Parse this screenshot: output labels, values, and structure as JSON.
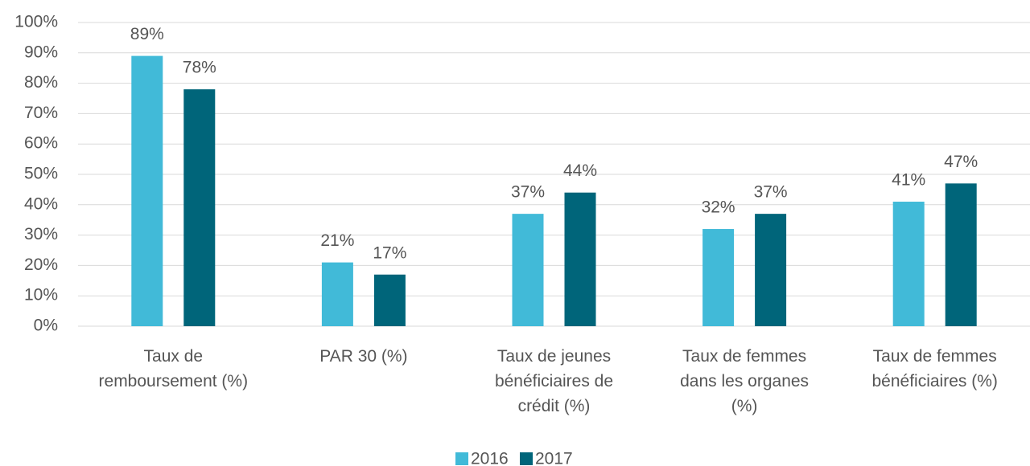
{
  "chart_data": {
    "type": "bar",
    "categories": [
      "Taux de\nremboursement (%)",
      "PAR 30 (%)",
      "Taux de jeunes\nbénéficiaires de\ncrédit (%)",
      "Taux de femmes\ndans les organes\n(%)",
      "Taux de femmes\nbénéficiaires (%)"
    ],
    "series": [
      {
        "name": "2016",
        "color": "#41bad8",
        "values": [
          89,
          21,
          37,
          32,
          41
        ],
        "value_labels": [
          "89%",
          "21%",
          "37%",
          "32%",
          "41%"
        ]
      },
      {
        "name": "2017",
        "color": "#00657a",
        "values": [
          78,
          17,
          44,
          37,
          47
        ],
        "value_labels": [
          "78%",
          "17%",
          "44%",
          "37%",
          "47%"
        ]
      }
    ],
    "ylim": [
      0,
      100
    ],
    "yticks": [
      {
        "value": 0,
        "label": "0%"
      },
      {
        "value": 10,
        "label": "10%"
      },
      {
        "value": 20,
        "label": "20%"
      },
      {
        "value": 30,
        "label": "30%"
      },
      {
        "value": 40,
        "label": "40%"
      },
      {
        "value": 50,
        "label": "50%"
      },
      {
        "value": 60,
        "label": "60%"
      },
      {
        "value": 70,
        "label": "70%"
      },
      {
        "value": 80,
        "label": "80%"
      },
      {
        "value": 90,
        "label": "90%"
      },
      {
        "value": 100,
        "label": "100%"
      }
    ],
    "grid": true,
    "legend": "bottom"
  }
}
